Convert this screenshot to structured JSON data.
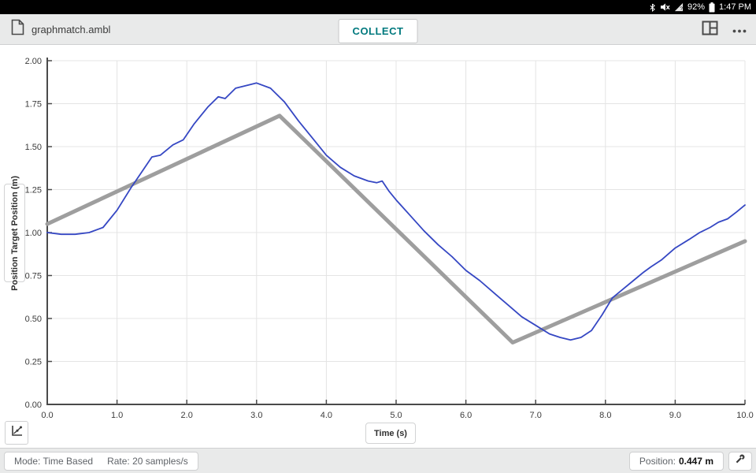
{
  "status_bar": {
    "battery_percent": "92%",
    "time": "1:47 PM",
    "icons": [
      "bluetooth-icon",
      "volume-muted-icon",
      "signal-icon",
      "battery-icon"
    ]
  },
  "toolbar": {
    "filename": "graphmatch.ambl",
    "collect_label": "COLLECT",
    "accent_color": "#00797e",
    "icons": [
      "document-icon",
      "split-view-icon",
      "more-options-icon"
    ]
  },
  "chart_data": {
    "type": "line",
    "title": "",
    "xlabel": "Time (s)",
    "ylabel": "Position Target Position (m)",
    "xlim": [
      0,
      10
    ],
    "ylim": [
      0,
      2
    ],
    "x_ticks": [
      "0.0",
      "1.0",
      "2.0",
      "3.0",
      "4.0",
      "5.0",
      "6.0",
      "7.0",
      "8.0",
      "9.0",
      "10.0"
    ],
    "y_ticks": [
      "0.00",
      "0.25",
      "0.50",
      "0.75",
      "1.00",
      "1.25",
      "1.50",
      "1.75",
      "2.00"
    ],
    "grid": true,
    "legend": "none",
    "colors": {
      "grid": "#e4e4e4",
      "axis": "#4a4a4a",
      "tick_text": "#3c3c3c"
    },
    "series": [
      {
        "name": "Target Position",
        "color": "#9e9e9e",
        "stroke_width": 5,
        "points": [
          [
            0,
            1.05
          ],
          [
            3.33,
            1.68
          ],
          [
            6.67,
            0.36
          ],
          [
            10,
            0.95
          ]
        ]
      },
      {
        "name": "Position",
        "color": "#3547c3",
        "stroke_width": 1.8,
        "points": [
          [
            0,
            1.0
          ],
          [
            0.2,
            0.99
          ],
          [
            0.4,
            0.99
          ],
          [
            0.6,
            1.0
          ],
          [
            0.8,
            1.03
          ],
          [
            1.0,
            1.13
          ],
          [
            1.2,
            1.26
          ],
          [
            1.35,
            1.35
          ],
          [
            1.5,
            1.44
          ],
          [
            1.62,
            1.45
          ],
          [
            1.8,
            1.51
          ],
          [
            1.95,
            1.54
          ],
          [
            2.1,
            1.63
          ],
          [
            2.3,
            1.73
          ],
          [
            2.45,
            1.79
          ],
          [
            2.55,
            1.78
          ],
          [
            2.7,
            1.84
          ],
          [
            2.9,
            1.86
          ],
          [
            3.0,
            1.87
          ],
          [
            3.2,
            1.84
          ],
          [
            3.4,
            1.76
          ],
          [
            3.6,
            1.65
          ],
          [
            3.8,
            1.55
          ],
          [
            4.0,
            1.45
          ],
          [
            4.2,
            1.38
          ],
          [
            4.4,
            1.33
          ],
          [
            4.6,
            1.3
          ],
          [
            4.72,
            1.29
          ],
          [
            4.8,
            1.3
          ],
          [
            4.9,
            1.24
          ],
          [
            5.0,
            1.19
          ],
          [
            5.2,
            1.1
          ],
          [
            5.4,
            1.01
          ],
          [
            5.6,
            0.93
          ],
          [
            5.8,
            0.86
          ],
          [
            6.0,
            0.78
          ],
          [
            6.2,
            0.72
          ],
          [
            6.4,
            0.65
          ],
          [
            6.6,
            0.58
          ],
          [
            6.8,
            0.51
          ],
          [
            7.0,
            0.46
          ],
          [
            7.2,
            0.41
          ],
          [
            7.35,
            0.39
          ],
          [
            7.5,
            0.375
          ],
          [
            7.65,
            0.39
          ],
          [
            7.8,
            0.43
          ],
          [
            7.95,
            0.52
          ],
          [
            8.1,
            0.62
          ],
          [
            8.25,
            0.67
          ],
          [
            8.4,
            0.72
          ],
          [
            8.55,
            0.77
          ],
          [
            8.65,
            0.8
          ],
          [
            8.8,
            0.84
          ],
          [
            9.0,
            0.91
          ],
          [
            9.2,
            0.96
          ],
          [
            9.35,
            1.0
          ],
          [
            9.5,
            1.03
          ],
          [
            9.62,
            1.06
          ],
          [
            9.75,
            1.08
          ],
          [
            9.88,
            1.12
          ],
          [
            10,
            1.16
          ]
        ]
      }
    ]
  },
  "bottom_bar": {
    "mode_label": "Mode: Time Based",
    "rate_label": "Rate: 20 samples/s",
    "position_label": "Position:",
    "position_value": "0.447 m"
  }
}
